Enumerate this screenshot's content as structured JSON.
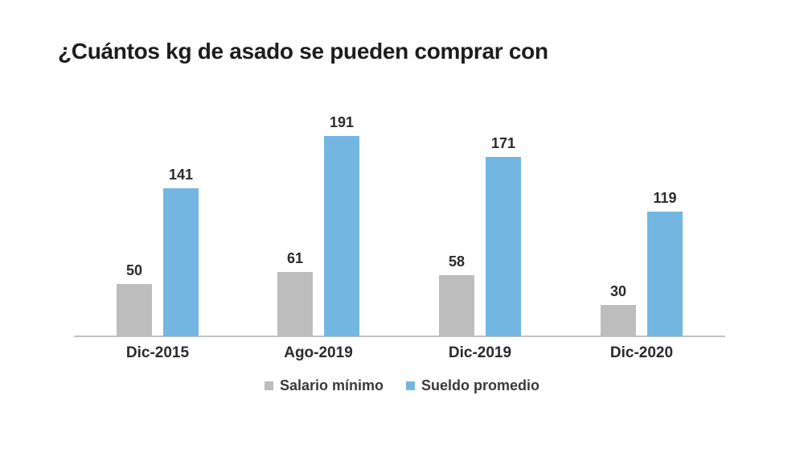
{
  "title": "¿Cuántos kg de asado se pueden comprar con",
  "colors": {
    "salario_minimo": "#bdbdbd",
    "sueldo_promedio": "#74b6e2",
    "axis_line": "#c2c2c2",
    "text": "#2b2b2b"
  },
  "chart_data": {
    "type": "bar",
    "categories": [
      "Dic-2015",
      "Ago-2019",
      "Dic-2019",
      "Dic-2020"
    ],
    "series": [
      {
        "name": "Salario mínimo",
        "color": "#bdbdbd",
        "values": [
          50,
          61,
          58,
          30
        ]
      },
      {
        "name": "Sueldo promedio",
        "color": "#74b6e2",
        "values": [
          141,
          191,
          171,
          119
        ]
      }
    ],
    "title": "¿Cuántos kg de asado se pueden comprar con",
    "xlabel": "",
    "ylabel": "",
    "ylim": [
      0,
      200
    ],
    "grid": false,
    "legend_position": "bottom",
    "value_labels": true
  }
}
